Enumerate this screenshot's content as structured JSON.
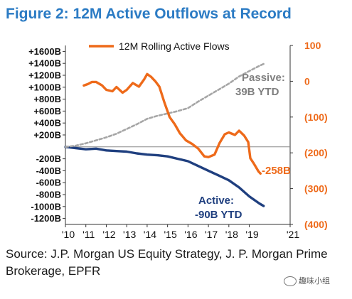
{
  "title": "Figure 2: 12M Active Outflows at Record",
  "source": "Source: J.P. Morgan US Equity Strategy, J. P. Morgan Prime Brokerage, EPFR",
  "watermark": "趣味小组",
  "chart_data": {
    "type": "line",
    "title": "Figure 2: 12M Active Outflows at Record",
    "x_ticks": [
      "'10",
      "'11",
      "'12",
      "'13",
      "'14",
      "'15",
      "'16",
      "'17",
      "'18",
      "'19",
      "'21"
    ],
    "x_range": [
      2010,
      2021
    ],
    "left_axis": {
      "ticks": [
        "+1600B",
        "+1400B",
        "+1200B",
        "+1000B",
        "+800B",
        "+600B",
        "+400B",
        "+200B",
        "-200B",
        "-400B",
        "-600B",
        "-800B",
        "-1000B",
        "-1200B"
      ],
      "range": [
        -1300,
        1700
      ]
    },
    "right_axis": {
      "ticks": [
        "100",
        "0",
        "(100)",
        "(200)",
        "(300)",
        "(400)"
      ],
      "range": [
        -400,
        100
      ],
      "color": "#ee6a1a"
    },
    "legend": {
      "label": "12M Rolling Active Flows",
      "placement": "top"
    },
    "series": [
      {
        "name": "Active",
        "axis": "left",
        "style": "solid",
        "color": "#1f3f7f",
        "label": [
          "Active:",
          "-90B YTD"
        ],
        "points": [
          [
            2010.0,
            0
          ],
          [
            2010.5,
            -20
          ],
          [
            2011.0,
            -40
          ],
          [
            2011.5,
            -30
          ],
          [
            2012.0,
            -60
          ],
          [
            2012.5,
            -70
          ],
          [
            2013.0,
            -80
          ],
          [
            2013.5,
            -110
          ],
          [
            2014.0,
            -130
          ],
          [
            2014.5,
            -140
          ],
          [
            2015.0,
            -160
          ],
          [
            2015.5,
            -200
          ],
          [
            2016.0,
            -240
          ],
          [
            2016.5,
            -320
          ],
          [
            2017.0,
            -400
          ],
          [
            2017.5,
            -480
          ],
          [
            2018.0,
            -560
          ],
          [
            2018.5,
            -680
          ],
          [
            2019.0,
            -830
          ],
          [
            2019.5,
            -950
          ],
          [
            2019.7,
            -990
          ]
        ]
      },
      {
        "name": "Passive",
        "axis": "left",
        "style": "dashed",
        "color": "#a6a6a6",
        "label": [
          "Passive:",
          "39B YTD"
        ],
        "points": [
          [
            2010.0,
            0
          ],
          [
            2010.5,
            20
          ],
          [
            2011.0,
            60
          ],
          [
            2011.5,
            110
          ],
          [
            2012.0,
            160
          ],
          [
            2012.5,
            220
          ],
          [
            2013.0,
            300
          ],
          [
            2013.5,
            380
          ],
          [
            2014.0,
            470
          ],
          [
            2014.5,
            520
          ],
          [
            2015.0,
            560
          ],
          [
            2015.5,
            600
          ],
          [
            2016.0,
            650
          ],
          [
            2016.5,
            760
          ],
          [
            2017.0,
            860
          ],
          [
            2017.5,
            960
          ],
          [
            2018.0,
            1060
          ],
          [
            2018.5,
            1180
          ],
          [
            2019.0,
            1270
          ],
          [
            2019.5,
            1360
          ],
          [
            2019.7,
            1390
          ]
        ]
      },
      {
        "name": "12M Rolling Active Flows",
        "axis": "right",
        "style": "solid",
        "color": "#ee6a1a",
        "label": [
          "-258B"
        ],
        "points": [
          [
            2010.9,
            -12
          ],
          [
            2011.1,
            -8
          ],
          [
            2011.3,
            -2
          ],
          [
            2011.5,
            -2
          ],
          [
            2011.8,
            -12
          ],
          [
            2012.0,
            -24
          ],
          [
            2012.3,
            -28
          ],
          [
            2012.5,
            -16
          ],
          [
            2012.8,
            -32
          ],
          [
            2013.0,
            -24
          ],
          [
            2013.3,
            -5
          ],
          [
            2013.6,
            -15
          ],
          [
            2013.85,
            5
          ],
          [
            2014.0,
            20
          ],
          [
            2014.2,
            12
          ],
          [
            2014.4,
            0
          ],
          [
            2014.6,
            -15
          ],
          [
            2014.85,
            -60
          ],
          [
            2015.1,
            -100
          ],
          [
            2015.35,
            -120
          ],
          [
            2015.6,
            -145
          ],
          [
            2015.9,
            -165
          ],
          [
            2016.2,
            -175
          ],
          [
            2016.5,
            -188
          ],
          [
            2016.8,
            -210
          ],
          [
            2017.0,
            -212
          ],
          [
            2017.3,
            -205
          ],
          [
            2017.55,
            -172
          ],
          [
            2017.8,
            -148
          ],
          [
            2018.0,
            -143
          ],
          [
            2018.3,
            -150
          ],
          [
            2018.5,
            -138
          ],
          [
            2018.75,
            -152
          ],
          [
            2018.95,
            -170
          ],
          [
            2019.05,
            -215
          ],
          [
            2019.2,
            -228
          ],
          [
            2019.45,
            -252
          ],
          [
            2019.55,
            -258
          ]
        ]
      }
    ]
  }
}
